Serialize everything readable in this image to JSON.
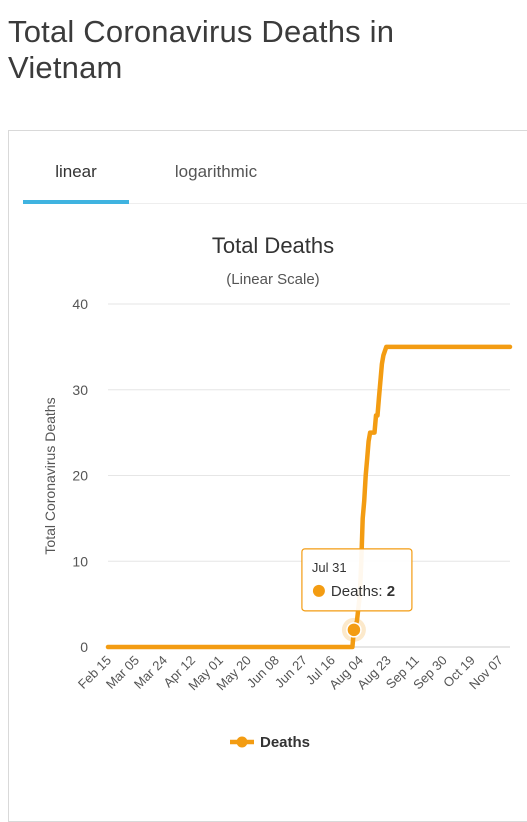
{
  "page_title": "Total Coronavirus Deaths in Vietnam",
  "tabs": [
    {
      "label": "linear",
      "active": true
    },
    {
      "label": "logarithmic",
      "active": false
    }
  ],
  "accent_color": "#3fb3e0",
  "chart_data": {
    "type": "line",
    "title": "Total Deaths",
    "subtitle": "(Linear Scale)",
    "ylabel": "Total Coronavirus Deaths",
    "xlabel": "",
    "ylim": [
      0,
      40
    ],
    "yticks": [
      0,
      10,
      20,
      30,
      40
    ],
    "x_tick_labels": [
      "Feb 15",
      "Mar 05",
      "Mar 24",
      "Apr 12",
      "May 01",
      "May 20",
      "Jun 08",
      "Jun 27",
      "Jul 16",
      "Aug 04",
      "Aug 23",
      "Sep 11",
      "Sep 30",
      "Oct 19",
      "Nov 07"
    ],
    "grid": true,
    "legend_position": "bottom",
    "series": [
      {
        "name": "Deaths",
        "color": "#f39c12",
        "points": [
          [
            "Feb 15",
            0
          ],
          [
            "Jul 30",
            0
          ],
          [
            "Jul 31",
            2
          ],
          [
            "Aug 02",
            3
          ],
          [
            "Aug 04",
            6
          ],
          [
            "Aug 05",
            10
          ],
          [
            "Aug 06",
            15
          ],
          [
            "Aug 07",
            17
          ],
          [
            "Aug 08",
            20
          ],
          [
            "Aug 09",
            22
          ],
          [
            "Aug 10",
            24
          ],
          [
            "Aug 11",
            25
          ],
          [
            "Aug 14",
            25
          ],
          [
            "Aug 15",
            27
          ],
          [
            "Aug 16",
            27
          ],
          [
            "Aug 17",
            29
          ],
          [
            "Aug 18",
            31
          ],
          [
            "Aug 19",
            33
          ],
          [
            "Aug 20",
            34
          ],
          [
            "Aug 22",
            35
          ],
          [
            "Nov 14",
            35
          ]
        ]
      }
    ],
    "tooltip": {
      "date": "Jul 31",
      "series_label": "Deaths:",
      "value": "2"
    }
  }
}
